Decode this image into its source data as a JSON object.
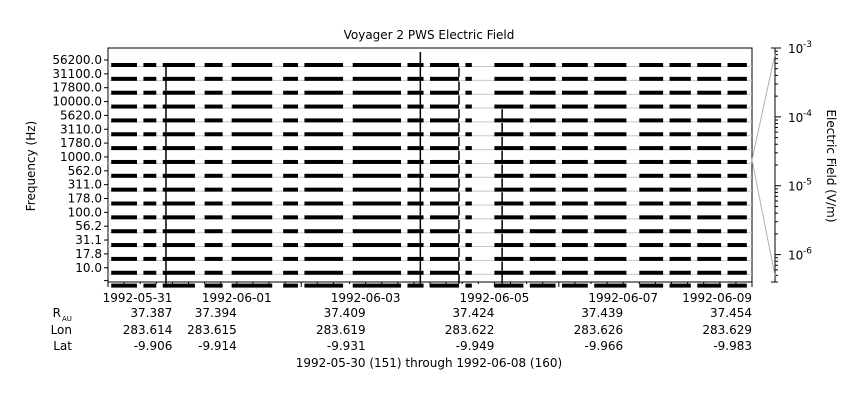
{
  "chart_data": {
    "type": "line",
    "title": "Voyager 2 PWS Electric Field",
    "ylabel": "Frequency (Hz)",
    "right_axis_label": "Electric Field (V/m)",
    "channels": [
      "56200.0",
      "31100.0",
      "17800.0",
      "10000.0",
      "5620.0",
      "3110.0",
      "1780.0",
      "1000.0",
      "562.0",
      "311.0",
      "178.0",
      "100.0",
      "56.2",
      "31.1",
      "17.8",
      "10.0"
    ],
    "color_scale": {
      "type": "log",
      "range": [
        4e-07,
        0.001
      ],
      "ticks": [
        {
          "value": 0.001,
          "mantissa": "10",
          "exp": "-3"
        },
        {
          "value": 0.0001,
          "mantissa": "10",
          "exp": "-4"
        },
        {
          "value": 1e-05,
          "mantissa": "10",
          "exp": "-5"
        },
        {
          "value": 1e-06,
          "mantissa": "10",
          "exp": "-6"
        }
      ]
    },
    "xlim": [
      "1992-05-30",
      "1992-06-09"
    ],
    "x_ticks": [
      {
        "label": "1992-05-31",
        "day": 1,
        "anchor": "end"
      },
      {
        "label": "1992-06-01",
        "day": 2,
        "anchor": "middle"
      },
      {
        "label": "1992-06-03",
        "day": 4,
        "anchor": "middle"
      },
      {
        "label": "1992-06-05",
        "day": 6,
        "anchor": "middle"
      },
      {
        "label": "1992-06-07",
        "day": 8,
        "anchor": "middle"
      },
      {
        "label": "1992-06-09",
        "day": 10,
        "anchor": "end"
      }
    ],
    "ephemeris": {
      "row_labels": [
        {
          "main": "R",
          "sub": "AU"
        },
        {
          "main": "Lon",
          "sub": ""
        },
        {
          "main": "Lat",
          "sub": ""
        }
      ],
      "columns": [
        {
          "tick": "1992-05-31",
          "R": "37.387",
          "Lon": "283.614",
          "Lat": "-9.906"
        },
        {
          "tick": "1992-06-01",
          "R": "37.394",
          "Lon": "283.615",
          "Lat": "-9.914"
        },
        {
          "tick": "1992-06-03",
          "R": "37.409",
          "Lon": "283.619",
          "Lat": "-9.931"
        },
        {
          "tick": "1992-06-05",
          "R": "37.424",
          "Lon": "283.622",
          "Lat": "-9.949"
        },
        {
          "tick": "1992-06-07",
          "R": "37.439",
          "Lon": "283.626",
          "Lat": "-9.966"
        },
        {
          "tick": "1992-06-09",
          "R": "37.454",
          "Lon": "283.629",
          "Lat": "-9.983"
        }
      ]
    },
    "caption": "1992-05-30 (151) through 1992-06-08 (160)",
    "data_segments": [
      [
        0.05,
        0.45
      ],
      [
        0.55,
        0.75
      ],
      [
        0.85,
        1.35
      ],
      [
        1.5,
        1.78
      ],
      [
        1.92,
        2.55
      ],
      [
        2.72,
        2.95
      ],
      [
        3.05,
        3.65
      ],
      [
        3.8,
        4.55
      ],
      [
        4.65,
        4.9
      ],
      [
        5.0,
        5.45
      ],
      [
        5.55,
        5.65
      ],
      [
        6.0,
        6.45
      ],
      [
        6.55,
        6.95
      ],
      [
        7.05,
        7.45
      ],
      [
        7.55,
        8.05
      ],
      [
        8.25,
        8.62
      ],
      [
        8.72,
        9.05
      ],
      [
        9.15,
        9.52
      ],
      [
        9.62,
        9.92
      ]
    ],
    "events": [
      {
        "day": 0.9,
        "peak_channel": 1,
        "magnitude": 4e-06
      },
      {
        "day": 4.85,
        "peak_channel": 0,
        "magnitude": 6e-06
      },
      {
        "day": 5.45,
        "peak_channel": 1,
        "magnitude": 3e-06
      },
      {
        "day": 6.12,
        "peak_channel": 4,
        "magnitude": 3e-06
      }
    ]
  }
}
